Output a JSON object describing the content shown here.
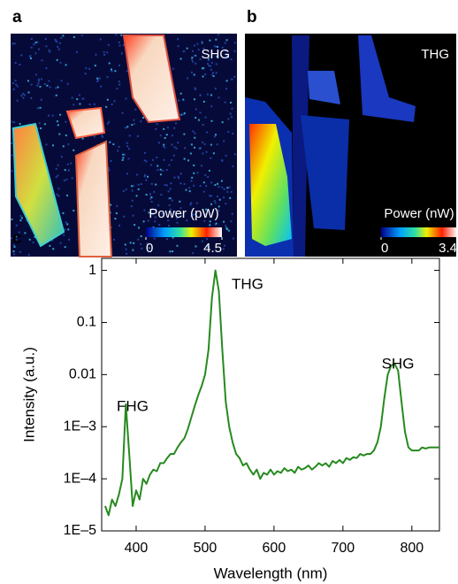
{
  "panels": [
    {
      "label": "a",
      "title": "SHG",
      "colorbar": {
        "label": "Power (pW)",
        "ticks": [
          0,
          4.5
        ]
      }
    },
    {
      "label": "b",
      "title": "THG",
      "colorbar": {
        "label": "Power (nW)",
        "ticks": [
          0,
          3.4
        ]
      }
    }
  ],
  "chart_data": {
    "type": "line",
    "panel_label": "c",
    "xlabel": "Wavelength (nm)",
    "ylabel": "Intensity (a.u.)",
    "color": "#268a1e",
    "log_y": true,
    "xlim": [
      350,
      840
    ],
    "ylim": [
      1e-05,
      1.7
    ],
    "xticks": [
      400,
      500,
      600,
      700,
      800
    ],
    "yticks": [
      {
        "value": 1e-05,
        "label": "1E–5"
      },
      {
        "value": 0.0001,
        "label": "1E–4"
      },
      {
        "value": 0.001,
        "label": "1E–3"
      },
      0.01,
      0.1,
      1
    ],
    "annotations": [
      "FHG",
      "THG",
      "SHG"
    ],
    "x": [
      355,
      360,
      365,
      370,
      375,
      380,
      385,
      390,
      395,
      400,
      405,
      410,
      415,
      420,
      425,
      430,
      435,
      440,
      445,
      450,
      455,
      460,
      465,
      470,
      475,
      480,
      485,
      490,
      495,
      500,
      505,
      510,
      515,
      520,
      525,
      530,
      535,
      540,
      545,
      550,
      555,
      560,
      565,
      570,
      575,
      580,
      585,
      590,
      595,
      600,
      605,
      610,
      615,
      620,
      625,
      630,
      635,
      640,
      645,
      650,
      655,
      660,
      665,
      670,
      675,
      680,
      685,
      690,
      695,
      700,
      705,
      710,
      715,
      720,
      725,
      730,
      735,
      740,
      745,
      750,
      755,
      760,
      765,
      770,
      775,
      780,
      785,
      790,
      795,
      800,
      805,
      810,
      815,
      820,
      825,
      830,
      835,
      840
    ],
    "values": [
      3e-05,
      2e-05,
      4e-05,
      3e-05,
      5e-05,
      0.0001,
      0.0027,
      0.0003,
      3e-05,
      6e-05,
      4e-05,
      0.0001,
      8e-05,
      0.00012,
      0.00015,
      0.00014,
      0.0002,
      0.0002,
      0.00025,
      0.0003,
      0.0003,
      0.0004,
      0.0005,
      0.0006,
      0.0009,
      0.0015,
      0.0025,
      0.004,
      0.006,
      0.01,
      0.03,
      0.3,
      1,
      0.4,
      0.03,
      0.003,
      0.001,
      0.0005,
      0.0003,
      0.00025,
      0.00018,
      0.0002,
      0.00015,
      0.00012,
      0.00015,
      0.0001,
      0.00013,
      0.00012,
      0.00015,
      0.00012,
      0.00014,
      0.00013,
      0.00016,
      0.00014,
      0.00015,
      0.00013,
      0.00017,
      0.00015,
      0.00016,
      0.00018,
      0.00015,
      0.00017,
      0.0002,
      0.00018,
      0.0002,
      0.00017,
      0.00022,
      0.0002,
      0.00023,
      0.0002,
      0.00025,
      0.00023,
      0.00026,
      0.00025,
      0.0003,
      0.00028,
      0.0003,
      0.0003,
      0.00035,
      0.0005,
      0.001,
      0.0035,
      0.01,
      0.015,
      0.016,
      0.012,
      0.003,
      0.0008,
      0.0004,
      0.00035,
      0.00035,
      0.00035,
      0.0004,
      0.00038,
      0.0004,
      0.0004,
      0.0004,
      0.0004
    ]
  }
}
